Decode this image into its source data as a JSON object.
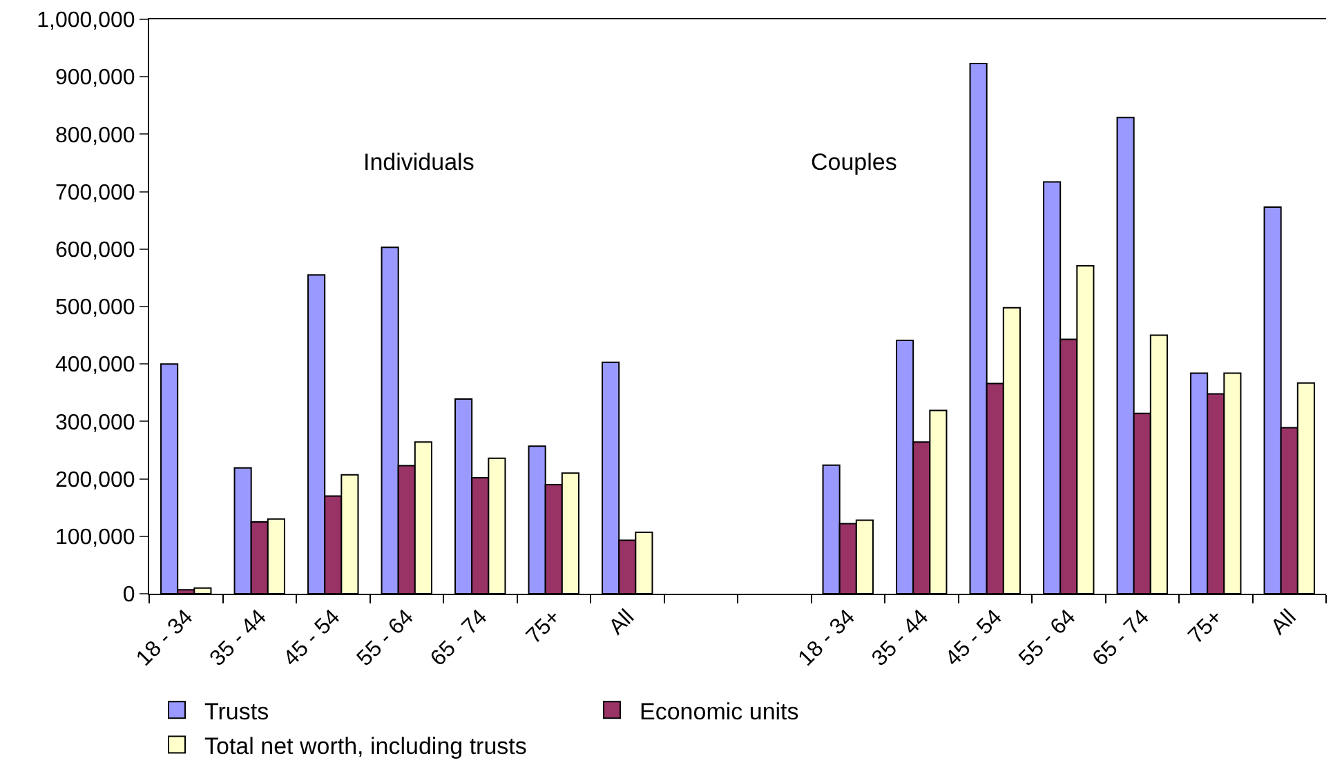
{
  "chart_data": {
    "type": "bar",
    "categories": [
      "18 - 34",
      "35 - 44",
      "45 - 54",
      "55 - 64",
      "65 - 74",
      "75+",
      "All",
      null,
      null,
      "18 - 34",
      "35 - 44",
      "45 - 54",
      "55 - 64",
      "65 - 74",
      "75+",
      "All"
    ],
    "series": [
      {
        "name": "Trusts",
        "color": "#9999ff",
        "values": [
          400000,
          219000,
          555000,
          603000,
          339000,
          257000,
          403000,
          null,
          null,
          224000,
          441000,
          923000,
          717000,
          829000,
          384000,
          673000
        ]
      },
      {
        "name": "Economic units",
        "color": "#993366",
        "values": [
          7000,
          125000,
          170000,
          223000,
          202000,
          190000,
          93000,
          null,
          null,
          122000,
          264000,
          366000,
          443000,
          314000,
          348000,
          289000
        ]
      },
      {
        "name": "Total net worth, including trusts",
        "color": "#ffffcc",
        "values": [
          10000,
          130000,
          207000,
          264000,
          236000,
          210000,
          107000,
          null,
          null,
          128000,
          319000,
          498000,
          571000,
          450000,
          384000,
          367000
        ]
      }
    ],
    "ylim": [
      0,
      1000000
    ],
    "yticks": [
      {
        "value": 0,
        "label": "0"
      },
      {
        "value": 100000,
        "label": "100,000"
      },
      {
        "value": 200000,
        "label": "200,000"
      },
      {
        "value": 300000,
        "label": "300,000"
      },
      {
        "value": 400000,
        "label": "400,000"
      },
      {
        "value": 500000,
        "label": "500,000"
      },
      {
        "value": 600000,
        "label": "600,000"
      },
      {
        "value": 700000,
        "label": "700,000"
      },
      {
        "value": 800000,
        "label": "800,000"
      },
      {
        "value": 900000,
        "label": "900,000"
      },
      {
        "value": 1000000,
        "label": "1,000,000"
      }
    ],
    "annotations": [
      "Individuals",
      "Couples"
    ],
    "grid": false,
    "legend": "bottom"
  }
}
